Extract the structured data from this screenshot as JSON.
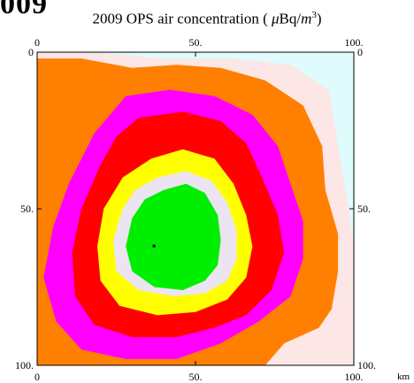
{
  "figure_heading": "009",
  "chart_data": {
    "type": "heatmap",
    "title": "2009 OPS air concentration",
    "title_unit": "μBq/m³",
    "title_unit_parts": {
      "symbol": "μ",
      "base": "Bq/",
      "var": "m",
      "exp": "3"
    },
    "x_unit_label": "km",
    "xlim": [
      0,
      100
    ],
    "ylim": [
      0,
      100
    ],
    "y_axis_direction": "down",
    "x_ticks_top": [
      "0",
      "50.",
      "100."
    ],
    "x_ticks_bottom": [
      "0",
      "50.",
      "100."
    ],
    "y_ticks_left": [
      "0",
      "50.",
      "100."
    ],
    "y_ticks_right": [
      "0",
      "50.",
      "100."
    ],
    "source_location": {
      "x": 36.9,
      "y": 61.9
    },
    "levels": [
      {
        "level": 1,
        "color": "#e0fbfb"
      },
      {
        "level": 2,
        "color": "#fce6e6"
      },
      {
        "level": 3,
        "color": "#ff8000"
      },
      {
        "level": 4,
        "color": "#ff00ff"
      },
      {
        "level": 5,
        "color": "#ff0000"
      },
      {
        "level": 6,
        "color": "#ffff00"
      },
      {
        "level": 7,
        "color": "#ece4f0"
      },
      {
        "level": 8,
        "color": "#00ee00"
      }
    ],
    "contours": [
      {
        "level": 2,
        "points": [
          [
            0,
            0
          ],
          [
            17,
            0
          ],
          [
            40,
            2
          ],
          [
            62,
            2
          ],
          [
            80,
            4
          ],
          [
            92,
            12
          ],
          [
            95,
            30
          ],
          [
            98,
            48
          ],
          [
            100,
            62
          ],
          [
            100,
            100
          ],
          [
            0,
            100
          ]
        ]
      },
      {
        "level": 3,
        "points": [
          [
            0,
            2
          ],
          [
            14,
            2
          ],
          [
            30,
            5
          ],
          [
            44,
            4
          ],
          [
            58,
            5
          ],
          [
            72,
            9
          ],
          [
            84,
            17
          ],
          [
            90,
            30
          ],
          [
            91,
            44
          ],
          [
            95,
            58
          ],
          [
            95,
            70
          ],
          [
            93,
            82
          ],
          [
            89,
            88
          ],
          [
            78,
            93
          ],
          [
            72,
            100
          ],
          [
            0,
            100
          ]
        ]
      },
      {
        "level": 4,
        "points": [
          [
            28,
            14
          ],
          [
            42,
            12
          ],
          [
            56,
            14
          ],
          [
            68,
            20
          ],
          [
            76,
            30
          ],
          [
            80,
            42
          ],
          [
            84,
            54
          ],
          [
            84,
            66
          ],
          [
            80,
            78
          ],
          [
            70,
            86
          ],
          [
            58,
            93
          ],
          [
            44,
            98
          ],
          [
            28,
            98
          ],
          [
            14,
            95
          ],
          [
            6,
            86
          ],
          [
            2,
            72
          ],
          [
            5,
            56
          ],
          [
            10,
            42
          ],
          [
            18,
            26
          ]
        ]
      },
      {
        "level": 5,
        "points": [
          [
            32,
            21
          ],
          [
            46,
            19
          ],
          [
            58,
            22
          ],
          [
            66,
            29
          ],
          [
            71,
            40
          ],
          [
            76,
            52
          ],
          [
            78,
            64
          ],
          [
            74,
            76
          ],
          [
            66,
            84
          ],
          [
            56,
            88
          ],
          [
            44,
            91
          ],
          [
            30,
            91
          ],
          [
            18,
            87
          ],
          [
            12,
            78
          ],
          [
            11,
            64
          ],
          [
            14,
            50
          ],
          [
            20,
            36
          ],
          [
            25,
            27
          ]
        ]
      },
      {
        "level": 6,
        "points": [
          [
            36,
            34
          ],
          [
            46,
            31
          ],
          [
            56,
            34
          ],
          [
            62,
            42
          ],
          [
            66,
            52
          ],
          [
            68,
            62
          ],
          [
            66,
            72
          ],
          [
            60,
            79
          ],
          [
            50,
            83
          ],
          [
            38,
            84
          ],
          [
            26,
            81
          ],
          [
            20,
            73
          ],
          [
            19,
            62
          ],
          [
            21,
            50
          ],
          [
            27,
            40
          ]
        ]
      },
      {
        "level": 7,
        "points": [
          [
            38,
            40
          ],
          [
            47,
            38
          ],
          [
            55,
            41
          ],
          [
            60,
            48
          ],
          [
            63,
            57
          ],
          [
            63,
            66
          ],
          [
            60,
            73
          ],
          [
            53,
            77
          ],
          [
            43,
            78
          ],
          [
            32,
            76
          ],
          [
            25,
            70
          ],
          [
            24,
            60
          ],
          [
            27,
            50
          ],
          [
            31,
            44
          ]
        ]
      },
      {
        "level": 8,
        "points": [
          [
            40,
            44
          ],
          [
            47,
            42
          ],
          [
            53,
            45
          ],
          [
            57,
            52
          ],
          [
            58,
            60
          ],
          [
            57,
            68
          ],
          [
            53,
            73
          ],
          [
            46,
            76
          ],
          [
            37,
            75
          ],
          [
            30,
            70
          ],
          [
            28,
            62
          ],
          [
            30,
            53
          ],
          [
            34,
            47
          ]
        ]
      }
    ]
  }
}
